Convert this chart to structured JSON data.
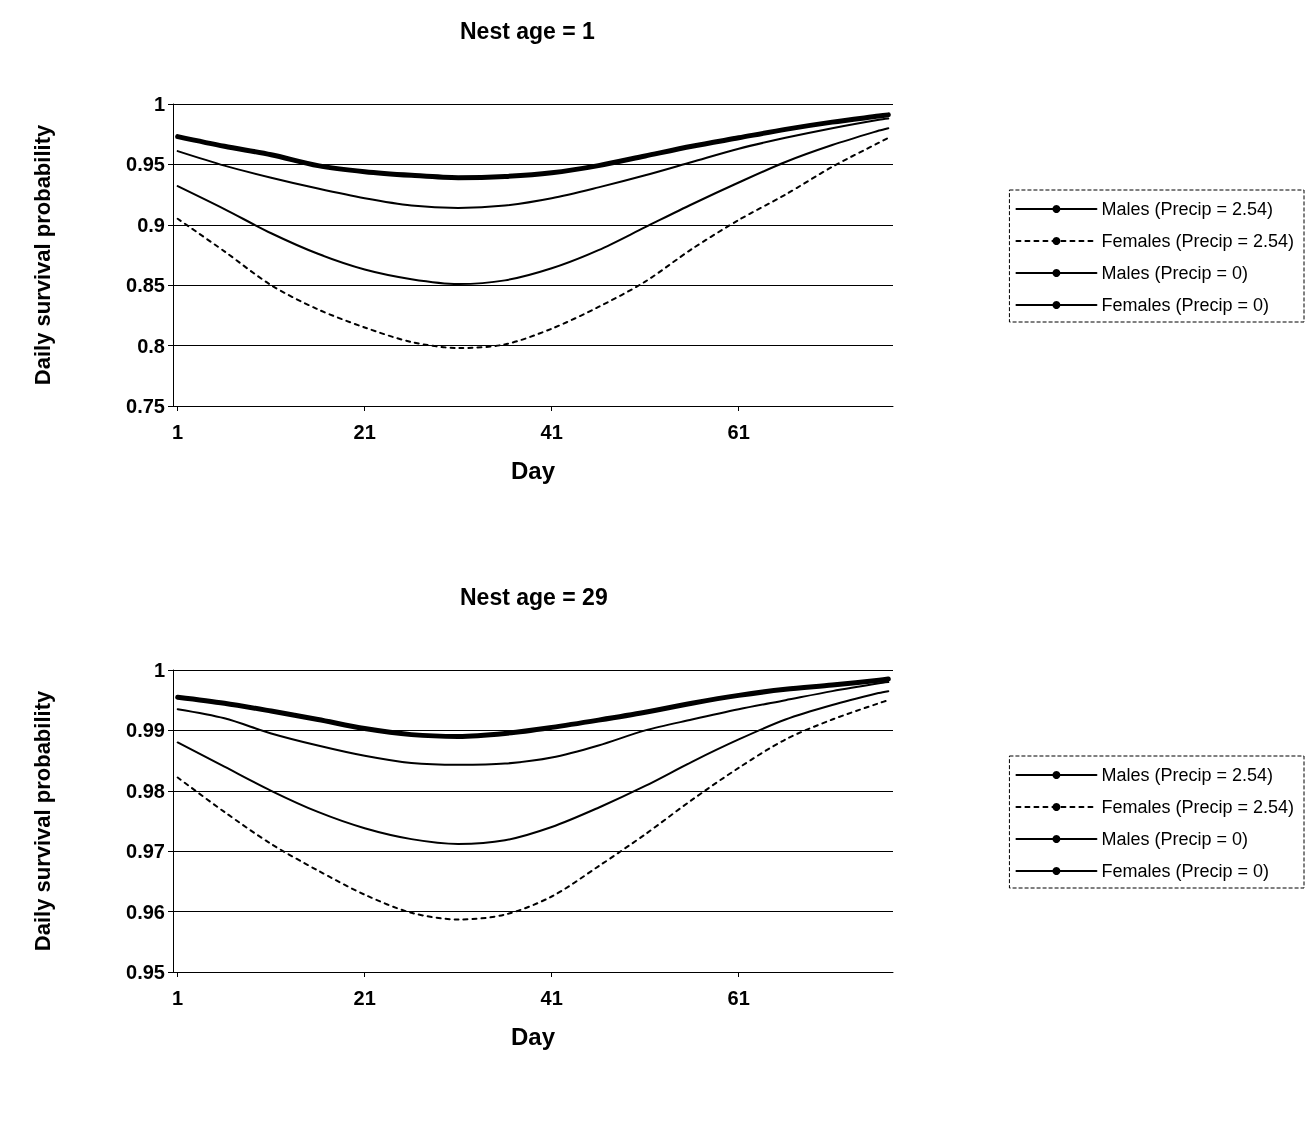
{
  "chart_data": [
    {
      "type": "line",
      "title": "Nest age = 1",
      "xlabel": "Day",
      "ylabel": "Daily survival probability",
      "x": [
        1,
        6,
        11,
        16,
        21,
        26,
        31,
        36,
        41,
        46,
        51,
        56,
        61,
        66,
        71,
        76,
        77
      ],
      "xlim": [
        0.5,
        77.5
      ],
      "xticks": [
        1,
        21,
        41,
        61
      ],
      "ylim": [
        0.75,
        1
      ],
      "yticks": [
        0.75,
        0.8,
        0.85,
        0.9,
        0.95,
        1
      ],
      "grid": "y",
      "legend": "right",
      "marker": "none",
      "series": [
        {
          "name": "Males (Precip = 2.54)",
          "color": "#000000",
          "line_style": "solid",
          "values": [
            0.932,
            0.913,
            0.893,
            0.876,
            0.863,
            0.855,
            0.851,
            0.854,
            0.864,
            0.879,
            0.898,
            0.917,
            0.935,
            0.952,
            0.966,
            0.978,
            0.98
          ]
        },
        {
          "name": "Females (Precip = 2.54)",
          "color": "#000000",
          "line_style": "dashed",
          "values": [
            0.905,
            0.878,
            0.85,
            0.83,
            0.815,
            0.803,
            0.798,
            0.801,
            0.814,
            0.832,
            0.853,
            0.88,
            0.904,
            0.925,
            0.948,
            0.968,
            0.972
          ]
        },
        {
          "name": "Males (Precip = 0)",
          "color": "#000000",
          "line_style": "solid",
          "values": [
            0.973,
            0.965,
            0.958,
            0.949,
            0.944,
            0.941,
            0.939,
            0.94,
            0.943,
            0.949,
            0.957,
            0.965,
            0.972,
            0.979,
            0.985,
            0.99,
            0.991
          ]
        },
        {
          "name": "Females (Precip = 0)",
          "color": "#000000",
          "line_style": "solid",
          "values": [
            0.961,
            0.949,
            0.939,
            0.93,
            0.922,
            0.916,
            0.914,
            0.916,
            0.922,
            0.931,
            0.941,
            0.952,
            0.963,
            0.972,
            0.98,
            0.987,
            0.988
          ]
        }
      ]
    },
    {
      "type": "line",
      "title": "Nest age = 29",
      "xlabel": "Day",
      "ylabel": "Daily survival probability",
      "x": [
        1,
        6,
        11,
        16,
        21,
        26,
        31,
        36,
        41,
        46,
        51,
        56,
        61,
        66,
        71,
        76,
        77
      ],
      "xlim": [
        0.5,
        77.5
      ],
      "xticks": [
        1,
        21,
        41,
        61
      ],
      "ylim": [
        0.95,
        1
      ],
      "yticks": [
        0.95,
        0.96,
        0.97,
        0.98,
        0.99,
        1
      ],
      "grid": "y",
      "legend": "right",
      "marker": "none",
      "series": [
        {
          "name": "Males (Precip = 2.54)",
          "color": "#000000",
          "line_style": "solid",
          "values": [
            0.988,
            0.984,
            0.98,
            0.9765,
            0.9738,
            0.972,
            0.9712,
            0.9718,
            0.974,
            0.9772,
            0.9808,
            0.9848,
            0.9885,
            0.9918,
            0.9942,
            0.9962,
            0.9965
          ]
        },
        {
          "name": "Females (Precip = 2.54)",
          "color": "#000000",
          "line_style": "dashed",
          "values": [
            0.9822,
            0.9765,
            0.9712,
            0.9668,
            0.9628,
            0.9598,
            0.9587,
            0.9595,
            0.9625,
            0.9675,
            0.9728,
            0.9785,
            0.9838,
            0.9885,
            0.9918,
            0.9945,
            0.995
          ]
        },
        {
          "name": "Males (Precip = 0)",
          "color": "#000000",
          "line_style": "solid",
          "values": [
            0.9955,
            0.9945,
            0.9932,
            0.9918,
            0.9903,
            0.9893,
            0.989,
            0.9895,
            0.9905,
            0.9917,
            0.993,
            0.9945,
            0.9958,
            0.9968,
            0.9975,
            0.9983,
            0.9985
          ]
        },
        {
          "name": "Females (Precip = 0)",
          "color": "#000000",
          "line_style": "solid",
          "values": [
            0.9935,
            0.992,
            0.9895,
            0.9875,
            0.9858,
            0.9846,
            0.9843,
            0.9845,
            0.9855,
            0.9875,
            0.99,
            0.9918,
            0.9935,
            0.995,
            0.9965,
            0.9978,
            0.998
          ]
        }
      ]
    }
  ]
}
